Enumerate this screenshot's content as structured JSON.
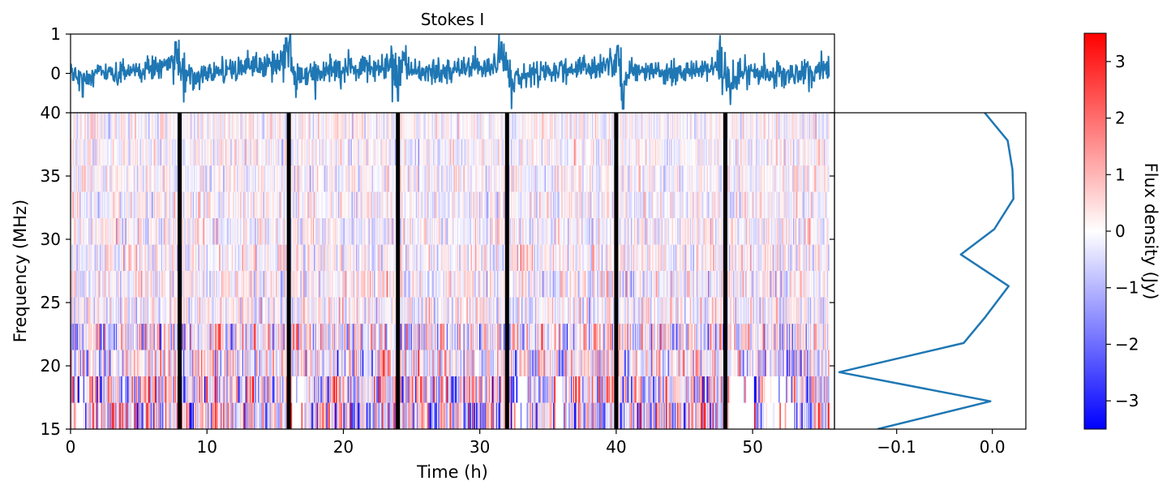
{
  "title": "Stokes I",
  "colors": {
    "series": "#1f77b4",
    "cmap_low": "#0000ff",
    "cmap_mid": "#ffffff",
    "cmap_high": "#ff0000",
    "gap_markers": "#000000"
  },
  "chart_data": [
    {
      "id": "timeseries",
      "type": "line",
      "title": "Stokes I",
      "xlabel": "",
      "ylabel": "",
      "xlim": [
        0,
        56
      ],
      "ylim": [
        -1,
        1
      ],
      "yticks": [
        1,
        0
      ],
      "series": [
        {
          "color": "#1f77b4",
          "description_points": [
            [
              0.2,
              0.3
            ],
            [
              0.9,
              -0.6
            ],
            [
              1.8,
              0.1
            ],
            [
              3.0,
              -0.2
            ],
            [
              5.0,
              0.1
            ],
            [
              7.7,
              0.8
            ],
            [
              8.3,
              -0.4
            ],
            [
              10.5,
              0.2
            ],
            [
              13.5,
              0.5
            ],
            [
              15.8,
              0.9
            ],
            [
              16.1,
              1.0
            ],
            [
              16.4,
              -0.4
            ],
            [
              19.0,
              0.2
            ],
            [
              23.6,
              0.5
            ],
            [
              24.0,
              -0.7
            ],
            [
              24.5,
              0.3
            ],
            [
              26.0,
              0.1
            ],
            [
              30.5,
              0.5
            ],
            [
              31.6,
              0.8
            ],
            [
              32.3,
              -0.5
            ],
            [
              34.0,
              0.1
            ],
            [
              39.0,
              0.5
            ],
            [
              40.1,
              0.7
            ],
            [
              40.5,
              -0.9
            ],
            [
              41.0,
              0.2
            ],
            [
              44.5,
              0.1
            ],
            [
              47.8,
              0.4
            ],
            [
              48.3,
              -0.5
            ],
            [
              50.0,
              0.1
            ],
            [
              53.0,
              -0.2
            ],
            [
              55.6,
              0.3
            ]
          ]
        }
      ]
    },
    {
      "id": "dynamic-spectrum",
      "type": "heatmap",
      "xlabel": "Time (h)",
      "ylabel": "Frequency (MHz)",
      "xlim": [
        0,
        56
      ],
      "ylim": [
        15,
        40
      ],
      "xticks": [
        0,
        10,
        20,
        30,
        40,
        50
      ],
      "yticks": [
        15,
        20,
        25,
        30,
        35,
        40
      ],
      "time_range": [
        0,
        55.6
      ],
      "frequency_channel_edges": [
        15,
        17.08,
        19.17,
        21.25,
        23.33,
        25.42,
        27.5,
        29.58,
        31.67,
        33.75,
        35.83,
        37.92,
        40
      ],
      "value_range": [
        -3.5,
        3.5
      ],
      "gap_marker_times": [
        8,
        16,
        24,
        32,
        40,
        48
      ],
      "colorbar": {
        "label": "Flux density (Jy)",
        "vmin": -3.5,
        "vmax": 3.5,
        "ticks": [
          3,
          2,
          1,
          0,
          -1,
          -2,
          -3
        ],
        "tick_labels": [
          "3",
          "2",
          "1",
          "0",
          "−1",
          "−2",
          "−3"
        ]
      }
    },
    {
      "id": "spectrum",
      "type": "line",
      "xlabel": "",
      "ylabel": "",
      "xlim": [
        -0.165,
        0.035
      ],
      "ylim": [
        15,
        40
      ],
      "xticks": [
        -0.1,
        0.0
      ],
      "xtick_labels": [
        "−0.1",
        "0.0"
      ],
      "series": [
        {
          "color": "#1f77b4",
          "x": [
            -0.12,
            -0.002,
            -0.16,
            -0.03,
            -0.008,
            0.017,
            -0.033,
            0.002,
            0.022,
            0.021,
            0.016,
            -0.008
          ],
          "y": [
            15,
            17.2,
            19.5,
            21.8,
            23.8,
            26.3,
            28.8,
            30.8,
            33.2,
            35.5,
            37.8,
            40
          ]
        }
      ]
    }
  ]
}
